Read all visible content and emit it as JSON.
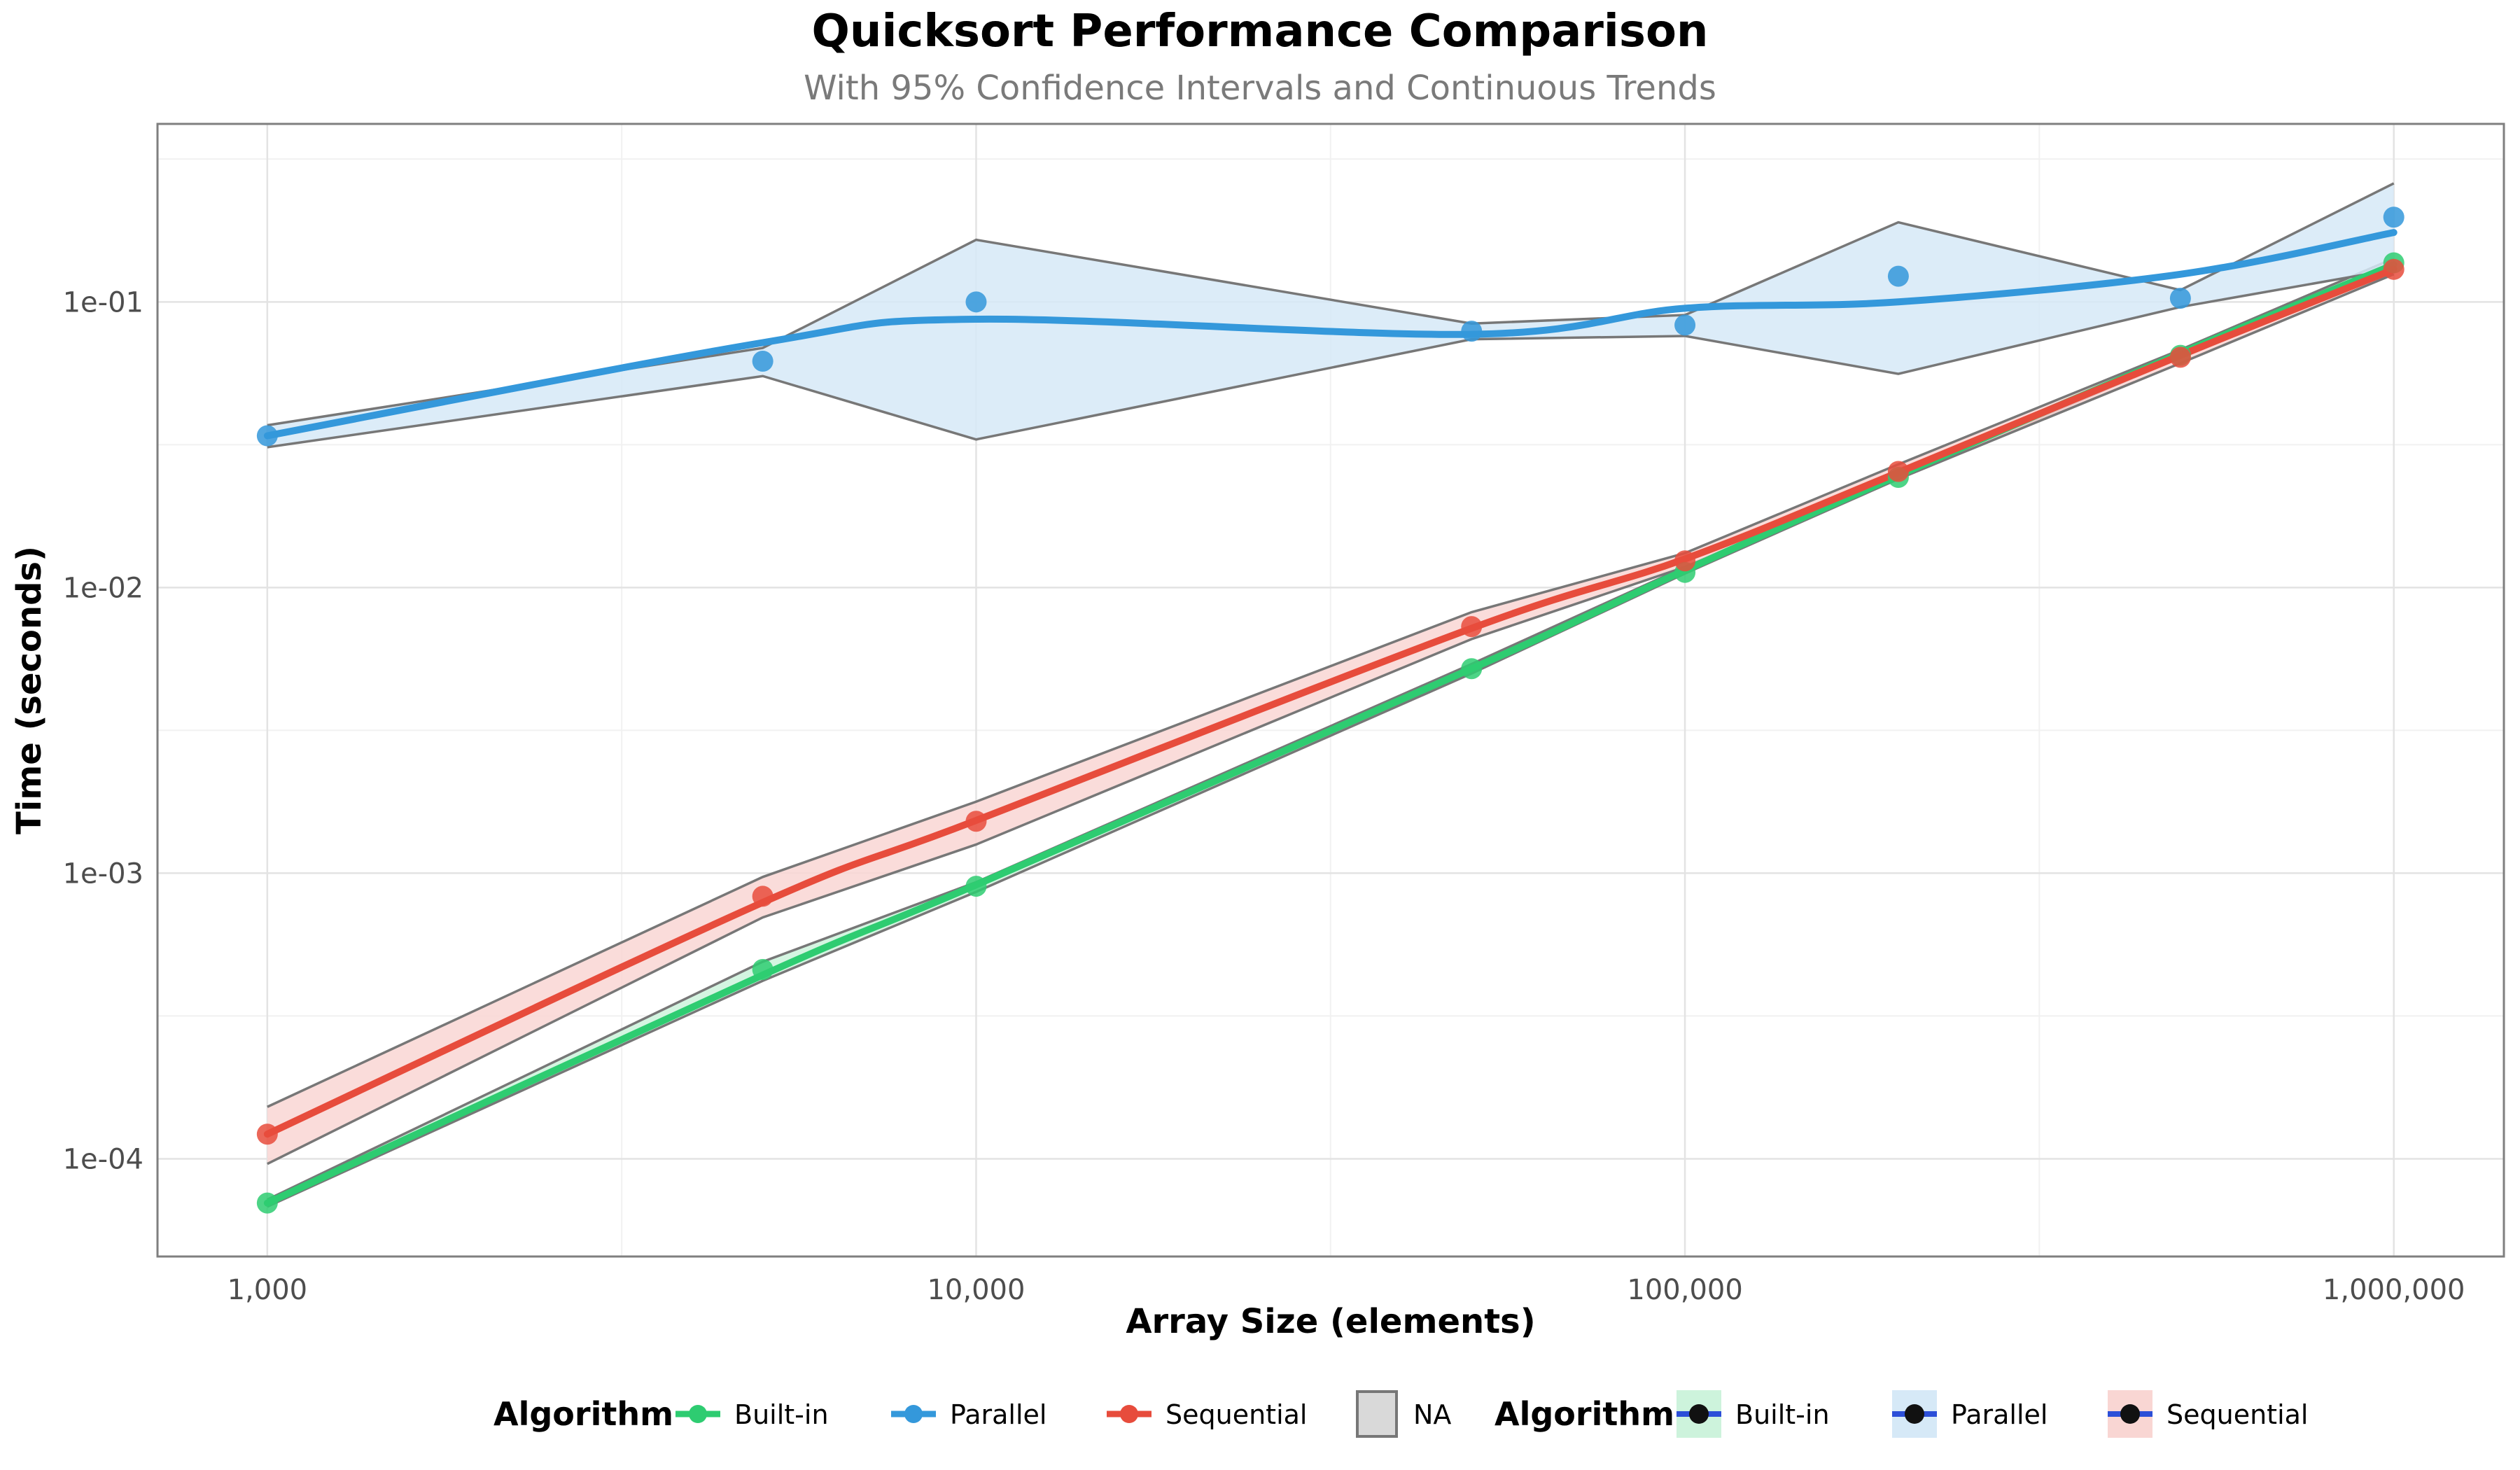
{
  "chart_data": {
    "type": "line",
    "title": "Quicksort Performance Comparison",
    "subtitle": "With 95% Confidence Intervals and Continuous Trends",
    "xlabel": "Array Size (elements)",
    "ylabel": "Time (seconds)",
    "x_scale": "log",
    "y_scale": "log",
    "xlim": [
      700,
      1430000
    ],
    "ylim": [
      4.55e-05,
      0.42
    ],
    "x_ticks": [
      1000,
      10000,
      100000,
      1000000
    ],
    "x_tick_labels": [
      "1,000",
      "10,000",
      "100,000",
      "1,000,000"
    ],
    "y_ticks": [
      0.0001,
      0.001,
      0.01,
      0.1
    ],
    "y_tick_labels": [
      "1e-04",
      "1e-03",
      "1e-02",
      "1e-01"
    ],
    "grid": true,
    "legend_position": "bottom",
    "x": [
      1000,
      5000,
      10000,
      50000,
      100000,
      200000,
      500000,
      1000000
    ],
    "series": [
      {
        "name": "Built-in",
        "color": "#2ecc71",
        "band_color": "#cdf3dc",
        "values": [
          7e-05,
          0.00046,
          0.0009,
          0.0052,
          0.0113,
          0.0243,
          0.065,
          0.137
        ],
        "trend": [
          7e-05,
          0.00044,
          0.00091,
          0.0052,
          0.0115,
          0.0247,
          0.066,
          0.135
        ],
        "ci_lower": [
          6.8e-05,
          0.00042,
          0.00086,
          0.005,
          0.0112,
          0.024,
          0.064,
          0.128
        ],
        "ci_upper": [
          7.2e-05,
          0.00049,
          0.00093,
          0.0054,
          0.0118,
          0.0252,
          0.068,
          0.142
        ]
      },
      {
        "name": "Parallel",
        "color": "#3498db",
        "band_color": "#d6e9f7",
        "values": [
          0.034,
          0.062,
          0.1,
          0.079,
          0.083,
          0.123,
          0.103,
          0.198
        ],
        "trend": [
          0.034,
          0.072,
          0.087,
          0.077,
          0.095,
          0.1,
          0.125,
          0.175
        ],
        "ci_lower": [
          0.031,
          0.055,
          0.033,
          0.074,
          0.076,
          0.056,
          0.096,
          0.13
        ],
        "ci_upper": [
          0.037,
          0.069,
          0.165,
          0.084,
          0.09,
          0.19,
          0.11,
          0.26
        ]
      },
      {
        "name": "Sequential",
        "color": "#e74c3c",
        "band_color": "#f9d6d3",
        "values": [
          0.000122,
          0.00083,
          0.00152,
          0.0073,
          0.0124,
          0.0255,
          0.064,
          0.13
        ],
        "trend": [
          0.000122,
          0.00079,
          0.00153,
          0.0072,
          0.0126,
          0.0253,
          0.065,
          0.13
        ],
        "ci_lower": [
          9.6e-05,
          0.0007,
          0.00126,
          0.0066,
          0.0118,
          0.024,
          0.061,
          0.125
        ],
        "ci_upper": [
          0.000152,
          0.00097,
          0.00178,
          0.0082,
          0.0132,
          0.027,
          0.068,
          0.136
        ]
      }
    ],
    "legend_groups": [
      {
        "title": "Algorithm",
        "items": [
          {
            "label": "Built-in",
            "kind": "line-point",
            "color": "#2ecc71"
          },
          {
            "label": "Parallel",
            "kind": "line-point",
            "color": "#3498db"
          },
          {
            "label": "Sequential",
            "kind": "line-point",
            "color": "#e74c3c"
          },
          {
            "label": "NA",
            "kind": "fill",
            "color": "#d9d9d9"
          }
        ]
      },
      {
        "title": "Algorithm",
        "items": [
          {
            "label": "Built-in",
            "kind": "band-key",
            "color": "#cdf3dc"
          },
          {
            "label": "Parallel",
            "kind": "band-key",
            "color": "#d6e9f7"
          },
          {
            "label": "Sequential",
            "kind": "band-key",
            "color": "#f9d6d3"
          }
        ]
      }
    ]
  }
}
